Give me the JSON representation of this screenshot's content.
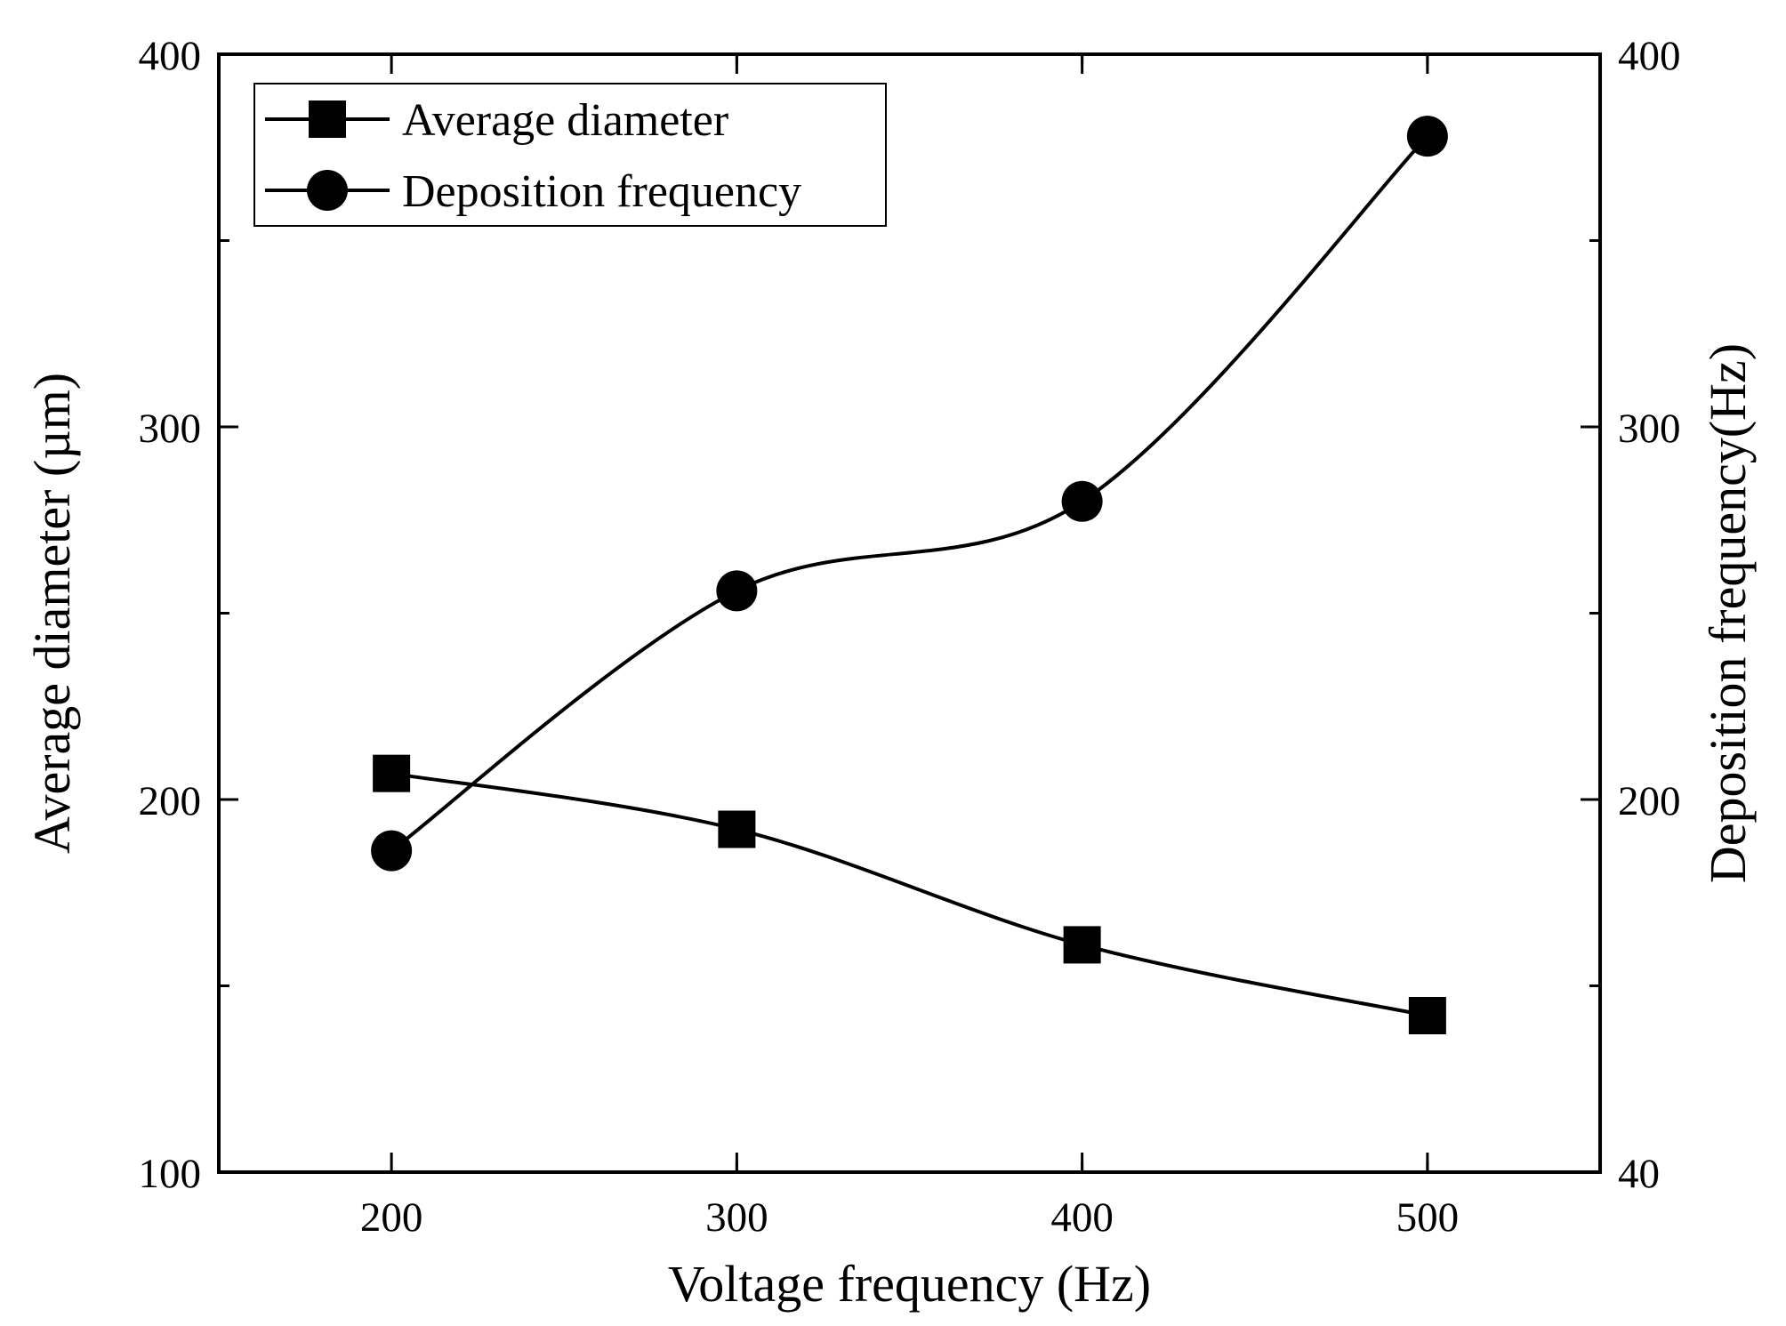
{
  "chart_data": {
    "type": "line",
    "title": "",
    "x": [
      200,
      300,
      400,
      500
    ],
    "xlabel": "Voltage frequency (Hz)",
    "xlim": [
      150,
      550
    ],
    "xticks": [
      200,
      300,
      400,
      500
    ],
    "xtick_labels": [
      "200",
      "300",
      "400",
      "500"
    ],
    "ylabel_left": "Average diameter (µm)",
    "ylim_left": [
      100,
      400
    ],
    "yticks_left": [
      100,
      200,
      300,
      400
    ],
    "ytick_labels_left": [
      "100",
      "200",
      "300",
      "400"
    ],
    "ylabel_right": "Deposition frequency(Hz)",
    "ylim_right": [
      40,
      400
    ],
    "ytick_labels_right": [
      "40",
      "200",
      "300",
      "400"
    ],
    "grid": false,
    "legend_position": "top-left",
    "series": [
      {
        "name": "Average diameter",
        "marker": "square",
        "axis": "left",
        "values": [
          207,
          192,
          161,
          142
        ]
      },
      {
        "name": "Deposition frequency",
        "marker": "circle",
        "axis": "right",
        "values": [
          178,
          256,
          280,
          378
        ]
      }
    ]
  },
  "colors": {
    "line": "#000000",
    "background": "#ffffff"
  }
}
